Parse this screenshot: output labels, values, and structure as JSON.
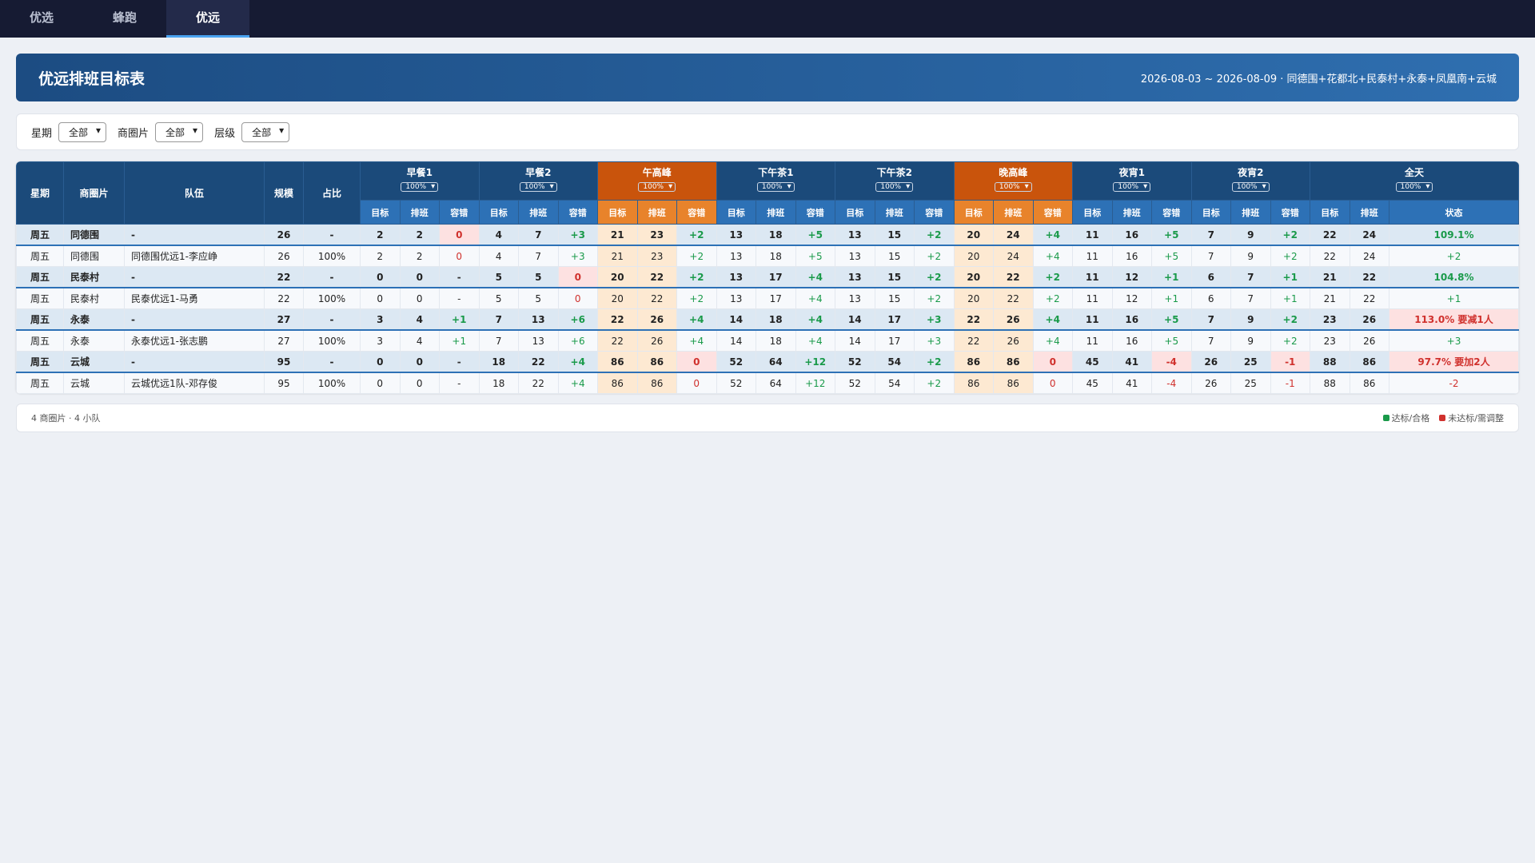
{
  "tabs": [
    "优选",
    "蜂跑",
    "优远"
  ],
  "header": {
    "title": "优远排班目标表",
    "range": "2026-08-03 ~ 2026-08-09 · 同德围+花都北+民泰村+永泰+凤凰南+云城"
  },
  "filters": [
    {
      "label": "星期",
      "value": "全部"
    },
    {
      "label": "商圈片",
      "value": "全部"
    },
    {
      "label": "层级",
      "value": "全部"
    }
  ],
  "table": {
    "fixed_headers": [
      "星期",
      "商圈片",
      "队伍",
      "规模",
      "占比"
    ],
    "periods": [
      {
        "name": "早餐1",
        "pct": "100%"
      },
      {
        "name": "早餐2",
        "pct": "100%"
      },
      {
        "name": "午高峰",
        "pct": "100%",
        "peak": true
      },
      {
        "name": "下午茶1",
        "pct": "100%"
      },
      {
        "name": "下午茶2",
        "pct": "100%"
      },
      {
        "name": "晚高峰",
        "pct": "100%",
        "peak": true
      },
      {
        "name": "夜宵1",
        "pct": "100%"
      },
      {
        "name": "夜宵2",
        "pct": "100%"
      }
    ],
    "sub_headers": [
      "目标",
      "排班",
      "容错"
    ],
    "all_day": {
      "name": "全天",
      "pct": "100%",
      "sub_headers": [
        "目标",
        "排班",
        "状态"
      ]
    },
    "rows": [
      {
        "day": "周五",
        "area": "同德围",
        "team": "-",
        "scale": 26,
        "ratio": "-",
        "slots": [
          [
            2,
            2,
            0
          ],
          [
            4,
            7,
            "+3"
          ],
          [
            21,
            23,
            "+2"
          ],
          [
            13,
            18,
            "+5"
          ],
          [
            13,
            15,
            "+2"
          ],
          [
            20,
            24,
            "+4"
          ],
          [
            11,
            16,
            "+5"
          ],
          [
            7,
            9,
            "+2"
          ]
        ],
        "all_day": [
          22,
          24
        ],
        "status": "109.1%"
      },
      {
        "day": "周五",
        "area": "同德围",
        "team": "同德围优远1-李应峥",
        "scale": 26,
        "ratio": "100%",
        "slots": [
          [
            2,
            2,
            0
          ],
          [
            4,
            7,
            "+3"
          ],
          [
            21,
            23,
            "+2"
          ],
          [
            13,
            18,
            "+5"
          ],
          [
            13,
            15,
            "+2"
          ],
          [
            20,
            24,
            "+4"
          ],
          [
            11,
            16,
            "+5"
          ],
          [
            7,
            9,
            "+2"
          ]
        ],
        "all_day": [
          22,
          24
        ],
        "status": "+2"
      },
      {
        "day": "周五",
        "area": "民泰村",
        "team": "-",
        "scale": 22,
        "ratio": "-",
        "slots": [
          [
            0,
            0,
            "-"
          ],
          [
            5,
            5,
            0
          ],
          [
            20,
            22,
            "+2"
          ],
          [
            13,
            17,
            "+4"
          ],
          [
            13,
            15,
            "+2"
          ],
          [
            20,
            22,
            "+2"
          ],
          [
            11,
            12,
            "+1"
          ],
          [
            6,
            7,
            "+1"
          ]
        ],
        "all_day": [
          21,
          22
        ],
        "status": "104.8%"
      },
      {
        "day": "周五",
        "area": "民泰村",
        "team": "民泰优远1-马勇",
        "scale": 22,
        "ratio": "100%",
        "slots": [
          [
            0,
            0,
            "-"
          ],
          [
            5,
            5,
            0
          ],
          [
            20,
            22,
            "+2"
          ],
          [
            13,
            17,
            "+4"
          ],
          [
            13,
            15,
            "+2"
          ],
          [
            20,
            22,
            "+2"
          ],
          [
            11,
            12,
            "+1"
          ],
          [
            6,
            7,
            "+1"
          ]
        ],
        "all_day": [
          21,
          22
        ],
        "status": "+1"
      },
      {
        "day": "周五",
        "area": "永泰",
        "team": "-",
        "scale": 27,
        "ratio": "-",
        "slots": [
          [
            3,
            4,
            "+1"
          ],
          [
            7,
            13,
            "+6"
          ],
          [
            22,
            26,
            "+4"
          ],
          [
            14,
            18,
            "+4"
          ],
          [
            14,
            17,
            "+3"
          ],
          [
            22,
            26,
            "+4"
          ],
          [
            11,
            16,
            "+5"
          ],
          [
            7,
            9,
            "+2"
          ]
        ],
        "all_day": [
          23,
          26
        ],
        "status": "113.0% 要减1人"
      },
      {
        "day": "周五",
        "area": "永泰",
        "team": "永泰优远1-张志鹏",
        "scale": 27,
        "ratio": "100%",
        "slots": [
          [
            3,
            4,
            "+1"
          ],
          [
            7,
            13,
            "+6"
          ],
          [
            22,
            26,
            "+4"
          ],
          [
            14,
            18,
            "+4"
          ],
          [
            14,
            17,
            "+3"
          ],
          [
            22,
            26,
            "+4"
          ],
          [
            11,
            16,
            "+5"
          ],
          [
            7,
            9,
            "+2"
          ]
        ],
        "all_day": [
          23,
          26
        ],
        "status": "+3"
      },
      {
        "day": "周五",
        "area": "云城",
        "team": "-",
        "scale": 95,
        "ratio": "-",
        "slots": [
          [
            0,
            0,
            "-"
          ],
          [
            18,
            22,
            "+4"
          ],
          [
            86,
            86,
            0
          ],
          [
            52,
            64,
            "+12"
          ],
          [
            52,
            54,
            "+2"
          ],
          [
            86,
            86,
            0
          ],
          [
            45,
            41,
            "-4"
          ],
          [
            26,
            25,
            "-1"
          ]
        ],
        "all_day": [
          88,
          86
        ],
        "status": "97.7% 要加2人"
      },
      {
        "day": "周五",
        "area": "云城",
        "team": "云城优远1队-邓存俊",
        "scale": 95,
        "ratio": "100%",
        "slots": [
          [
            0,
            0,
            "-"
          ],
          [
            18,
            22,
            "+4"
          ],
          [
            86,
            86,
            0
          ],
          [
            52,
            64,
            "+12"
          ],
          [
            52,
            54,
            "+2"
          ],
          [
            86,
            86,
            0
          ],
          [
            45,
            41,
            "-4"
          ],
          [
            26,
            25,
            "-1"
          ]
        ],
        "all_day": [
          88,
          86
        ],
        "status": "-2"
      }
    ]
  },
  "footer": {
    "summary": "4 商圈片 · 4 小队",
    "legend": [
      "达标/合格",
      "未达标/需调整"
    ]
  }
}
